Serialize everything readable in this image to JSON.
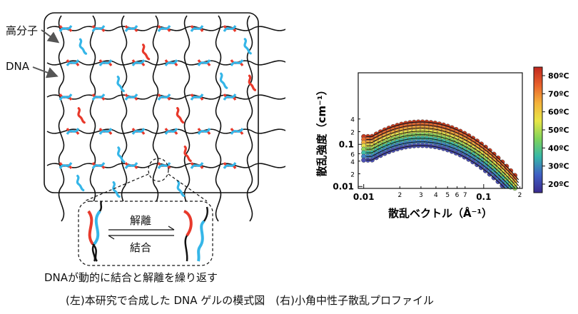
{
  "left_panel": {
    "labels": {
      "polymer": "高分子",
      "dna": "DNA",
      "dissociation": "解離",
      "association": "結合",
      "description": "DNAが動的に結合と解離を繰り返す"
    },
    "colors": {
      "strand_red": "#e8392b",
      "strand_blue": "#35b6e8",
      "chain": "#111111"
    }
  },
  "chart_data": {
    "type": "scatter",
    "xlabel": "散乱ベクトル（Å⁻¹）",
    "ylabel": "散乱強度（cm⁻¹）",
    "xscale": "log",
    "yscale": "log",
    "xlim": [
      0.009,
      0.21
    ],
    "ylim": [
      0.009,
      5
    ],
    "x_tick_labels": [
      {
        "v": 0.01,
        "t": "0.01",
        "major": true
      },
      {
        "v": 0.02,
        "t": "2"
      },
      {
        "v": 0.03,
        "t": "3"
      },
      {
        "v": 0.04,
        "t": "4"
      },
      {
        "v": 0.05,
        "t": "5"
      },
      {
        "v": 0.06,
        "t": "6"
      },
      {
        "v": 0.07,
        "t": "7"
      },
      {
        "v": 0.1,
        "t": "0.1",
        "major": true
      },
      {
        "v": 0.2,
        "t": "2"
      }
    ],
    "y_tick_labels": [
      {
        "v": 0.01,
        "t": "0.01",
        "major": true
      },
      {
        "v": 0.02,
        "t": "2"
      },
      {
        "v": 0.04,
        "t": "4"
      },
      {
        "v": 0.06,
        "t": "6"
      },
      {
        "v": 0.1,
        "t": "0.1",
        "major": true
      },
      {
        "v": 0.2,
        "t": "2"
      },
      {
        "v": 0.4,
        "t": "4"
      }
    ],
    "colorbar": {
      "labels": [
        "80ºC",
        "70ºC",
        "60ºC",
        "50ºC",
        "40ºC",
        "30ºC",
        "20ºC"
      ],
      "colors": [
        "#c0271e",
        "#e8612b",
        "#f4b23a",
        "#e8e646",
        "#7fd45a",
        "#36b7a8",
        "#3f5fc4",
        "#3a2b8e"
      ]
    },
    "series": [
      {
        "temp": 80,
        "color": "#c73a1e",
        "peak": 0.34,
        "q0": 0.8
      },
      {
        "temp": 72,
        "color": "#ea6a2c",
        "peak": 0.29,
        "q0": 0.6
      },
      {
        "temp": 64,
        "color": "#f4aa39",
        "peak": 0.245,
        "q0": 0.45
      },
      {
        "temp": 56,
        "color": "#e6e249",
        "peak": 0.205,
        "q0": 0.33
      },
      {
        "temp": 48,
        "color": "#8fd65a",
        "peak": 0.17,
        "q0": 0.25
      },
      {
        "temp": 40,
        "color": "#3fbfa6",
        "peak": 0.14,
        "q0": 0.18
      },
      {
        "temp": 30,
        "color": "#3f86c8",
        "peak": 0.115,
        "q0": 0.12
      },
      {
        "temp": 20,
        "color": "#4b4fb4",
        "peak": 0.094,
        "q0": 0.07
      }
    ]
  },
  "caption": "(左)本研究で合成した DNA ゲルの模式図　(右)小角中性子散乱プロファイル"
}
